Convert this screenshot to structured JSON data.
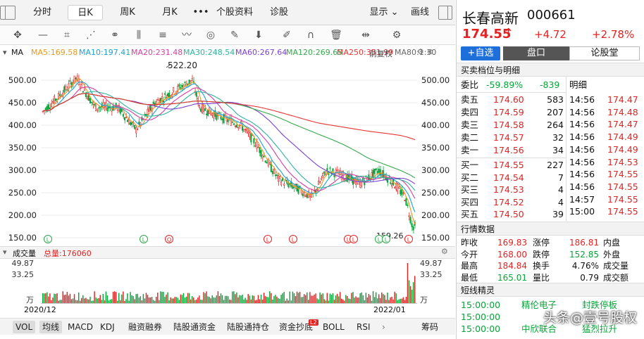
{
  "top_tabs": [
    {
      "label": "分时"
    },
    {
      "label": "日K"
    },
    {
      "label": "周K"
    },
    {
      "label": "月K"
    },
    {
      "label": "•••"
    },
    {
      "label": "个股资料"
    },
    {
      "label": "诊股"
    }
  ],
  "display_label": "显示",
  "draw_label": "画线",
  "ma_line": {
    "ma": "MA",
    "ma5": "MA5:169.58",
    "ma10": "MA10:197.41",
    "ma20": "MA20:231.48",
    "ma30": "MA30:248.54",
    "ma60": "MA60:267.64",
    "ma120": "MA120:269.65",
    "ma250": "MA250:351.99",
    "tail": "前复权",
    "tail2": "MA80:1:30"
  },
  "colors": {
    "ma5": "#e89a1b",
    "ma10": "#1aa2d6",
    "ma20": "#d83da2",
    "ma30": "#2eb49b",
    "ma60": "#7b3fd4",
    "ma120": "#35a84a",
    "ma250": "#e83333",
    "up": "#e32222",
    "down": "#0aa33a"
  },
  "y_axis": [
    "500.00",
    "450.00",
    "400.00",
    "350.00",
    "300.00",
    "250.00",
    "200.00",
    "150.00"
  ],
  "annotations": {
    "high": "522.20",
    "low": "159.26"
  },
  "vol_header": {
    "title": "成交量",
    "total": "总量:176060"
  },
  "vol_axis": {
    "top": "49.87",
    "mid": "33.25",
    "unit": "万"
  },
  "dates": {
    "start": "2020/12",
    "end": "2022/01"
  },
  "bottom_tabs": [
    {
      "label": "VOL"
    },
    {
      "label": "均线"
    },
    {
      "label": "MACD"
    },
    {
      "label": "KDJ"
    },
    {
      "label": "融资融券"
    },
    {
      "label": "陆股通资金"
    },
    {
      "label": "陆股通持仓"
    },
    {
      "label": "资金抄底"
    },
    {
      "label": "BOLL"
    },
    {
      "label": "RSI"
    }
  ],
  "chip_label": "筹码",
  "badge": "L2",
  "stock": {
    "name": "长春高新",
    "code": "000661",
    "price": "174.55",
    "arrow": "↑",
    "change": "+4.72",
    "pct": "+2.78%"
  },
  "actions": {
    "add": "+自选",
    "panel": "盘口",
    "forum": "论股堂"
  },
  "orderbook_title": "买卖档位与明细",
  "ratio": {
    "label": "委比",
    "pct": "-59.89%",
    "val": "-839"
  },
  "detail_label": "明细",
  "asks": [
    {
      "label": "卖五",
      "price": "174.60",
      "vol": "583"
    },
    {
      "label": "卖四",
      "price": "174.59",
      "vol": "207"
    },
    {
      "label": "卖三",
      "price": "174.58",
      "vol": "264"
    },
    {
      "label": "卖二",
      "price": "174.57",
      "vol": "32"
    },
    {
      "label": "卖一",
      "price": "174.56",
      "vol": "34"
    }
  ],
  "bids": [
    {
      "label": "买一",
      "price": "174.55",
      "vol": "227"
    },
    {
      "label": "买二",
      "price": "174.54",
      "vol": "7"
    },
    {
      "label": "买三",
      "price": "174.53",
      "vol": "4"
    },
    {
      "label": "买四",
      "price": "174.52",
      "vol": "4"
    },
    {
      "label": "买五",
      "price": "174.50",
      "vol": "39"
    }
  ],
  "ticks": [
    {
      "t": "14:56",
      "p": "174.47"
    },
    {
      "t": "14:56",
      "p": "174.48"
    },
    {
      "t": "14:56",
      "p": "174.47"
    },
    {
      "t": "14:56",
      "p": "174.49"
    },
    {
      "t": "14:56",
      "p": "174.49"
    },
    {
      "t": "14:56",
      "p": "174.53"
    },
    {
      "t": "14:56",
      "p": "174.55"
    },
    {
      "t": "14:56",
      "p": "174.55"
    },
    {
      "t": "14:57",
      "p": "174.55"
    },
    {
      "t": "15:00",
      "p": "174.55"
    }
  ],
  "market_title": "行情数据",
  "market": [
    {
      "a": "昨收",
      "av": "169.83",
      "b": "涨停",
      "bv": "186.81",
      "c": "内盘"
    },
    {
      "a": "今开",
      "av": "168.00",
      "b": "跌停",
      "bv": "152.85",
      "c": "外盘"
    },
    {
      "a": "最高",
      "av": "184.84",
      "b": "换手",
      "bv": "4.76%",
      "c": "成交量"
    },
    {
      "a": "最低",
      "av": "165.01",
      "b": "量比",
      "bv": "0.79",
      "c": "成交额"
    }
  ],
  "news_title": "短线精灵",
  "news": [
    {
      "t": "15:00:00",
      "a": "精伦电子",
      "b": "封跌停板"
    },
    {
      "t": "15:00:00",
      "a": "",
      "b": ""
    },
    {
      "t": "15:00:00",
      "a": "中欣联合",
      "b": "猛烈拉升"
    }
  ],
  "watermark": "头条@壹号股权"
}
